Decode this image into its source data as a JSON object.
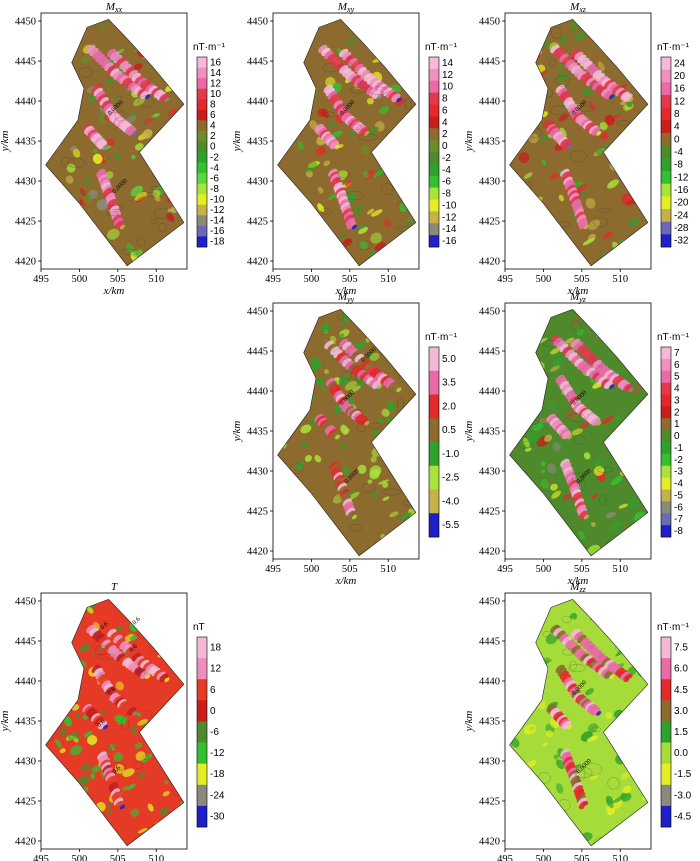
{
  "figure": {
    "x_axis_label": "x/km",
    "y_axis_label": "y/km",
    "x_ticks": [
      "495",
      "500",
      "505",
      "510"
    ],
    "y_ticks": [
      "4450",
      "4445",
      "4440",
      "4435",
      "4430",
      "4425",
      "4420"
    ]
  },
  "chart_data": [
    {
      "id": "mxx",
      "type": "heatmap",
      "title_main": "M",
      "title_sub": "xx",
      "unit": "nT·m⁻¹",
      "xlim": [
        495,
        514
      ],
      "ylim": [
        4419,
        4451
      ],
      "x_ticks": [
        495,
        500,
        505,
        510
      ],
      "y_ticks": [
        4420,
        4425,
        4430,
        4435,
        4440,
        4445,
        4450
      ],
      "colorbar_labels": [
        "16",
        "14",
        "12",
        "10",
        "8",
        "6",
        "4",
        "2",
        "0",
        "-2",
        "-4",
        "-6",
        "-8",
        "-10",
        "-12",
        "-14",
        "-16",
        "-18"
      ],
      "background": "#8d6a2e",
      "contour_labels": [
        "0.0000",
        "0.0000"
      ]
    },
    {
      "id": "mxy",
      "type": "heatmap",
      "title_main": "M",
      "title_sub": "xy",
      "unit": "nT·m⁻¹",
      "xlim": [
        495,
        514
      ],
      "ylim": [
        4419,
        4451
      ],
      "x_ticks": [
        495,
        500,
        505,
        510
      ],
      "y_ticks": [
        4420,
        4425,
        4430,
        4435,
        4440,
        4445,
        4450
      ],
      "colorbar_labels": [
        "14",
        "12",
        "10",
        "8",
        "6",
        "4",
        "2",
        "0",
        "-2",
        "-4",
        "-6",
        "-8",
        "-10",
        "-12",
        "-14",
        "-16"
      ],
      "background": "#8d6a2e",
      "contour_labels": [
        "0.0000"
      ]
    },
    {
      "id": "mxz",
      "type": "heatmap",
      "title_main": "M",
      "title_sub": "xz",
      "unit": "nT·m⁻¹",
      "xlim": [
        495,
        514
      ],
      "ylim": [
        4419,
        4451
      ],
      "x_ticks": [
        495,
        500,
        505,
        510
      ],
      "y_ticks": [
        4420,
        4425,
        4430,
        4435,
        4440,
        4445,
        4450
      ],
      "colorbar_labels": [
        "24",
        "20",
        "16",
        "12",
        "8",
        "4",
        "0",
        "-4",
        "-8",
        "-12",
        "-16",
        "-20",
        "-24",
        "-28",
        "-32"
      ],
      "background": "#8d6a2e",
      "contour_labels": [
        "0.0000"
      ]
    },
    {
      "id": "myy",
      "type": "heatmap",
      "title_main": "M",
      "title_sub": "yy",
      "unit": "nT·m⁻¹",
      "xlim": [
        495,
        514
      ],
      "ylim": [
        4419,
        4451
      ],
      "x_ticks": [
        495,
        500,
        505,
        510
      ],
      "y_ticks": [
        4420,
        4425,
        4430,
        4435,
        4440,
        4445,
        4450
      ],
      "colorbar_labels": [
        "5.0",
        "3.5",
        "2.0",
        "0.5",
        "-1.0",
        "-2.5",
        "-4.0",
        "-5.5"
      ],
      "background": "#8d6a2e",
      "contour_labels": [
        "0.0000",
        "0.0000",
        "0.0000"
      ]
    },
    {
      "id": "myz",
      "type": "heatmap",
      "title_main": "M",
      "title_sub": "yz",
      "unit": "nT·m⁻¹",
      "xlim": [
        495,
        514
      ],
      "ylim": [
        4419,
        4451
      ],
      "x_ticks": [
        495,
        500,
        505,
        510
      ],
      "y_ticks": [
        4420,
        4425,
        4430,
        4435,
        4440,
        4445,
        4450
      ],
      "colorbar_labels": [
        "7",
        "6",
        "5",
        "4",
        "3",
        "2",
        "1",
        "0",
        "-1",
        "-2",
        "-3",
        "-4",
        "-5",
        "-6",
        "-7",
        "-8"
      ],
      "background": "#4e8a2c",
      "contour_labels": [
        "0.0000",
        "0.0000"
      ]
    },
    {
      "id": "t",
      "type": "heatmap",
      "title_main": "T",
      "title_sub": "",
      "unit": "nT",
      "xlim": [
        495,
        514
      ],
      "ylim": [
        4419,
        4451
      ],
      "x_ticks": [
        495,
        500,
        505,
        510
      ],
      "y_ticks": [
        4420,
        4425,
        4430,
        4435,
        4440,
        4445,
        4450
      ],
      "colorbar_labels": [
        "18",
        "12",
        "6",
        "0",
        "-6",
        "-12",
        "-18",
        "-24",
        "-30"
      ],
      "background": "#e53a26",
      "contour_labels": [
        "0.6",
        "0.6",
        "0.6",
        "0.6",
        "0.6",
        "0.6"
      ]
    },
    {
      "id": "mzz",
      "type": "heatmap",
      "title_main": "M",
      "title_sub": "zz",
      "unit": "nT·m⁻¹",
      "xlim": [
        495,
        514
      ],
      "ylim": [
        4419,
        4451
      ],
      "x_ticks": [
        495,
        500,
        505,
        510
      ],
      "y_ticks": [
        4420,
        4425,
        4430,
        4435,
        4440,
        4445,
        4450
      ],
      "colorbar_labels": [
        "7.5",
        "6.0",
        "4.5",
        "3.0",
        "1.5",
        "0.0",
        "-1.5",
        "-3.0",
        "-4.5"
      ],
      "background": "#a6dc3a",
      "contour_labels": [
        "0.0000",
        "0.0000"
      ]
    }
  ]
}
